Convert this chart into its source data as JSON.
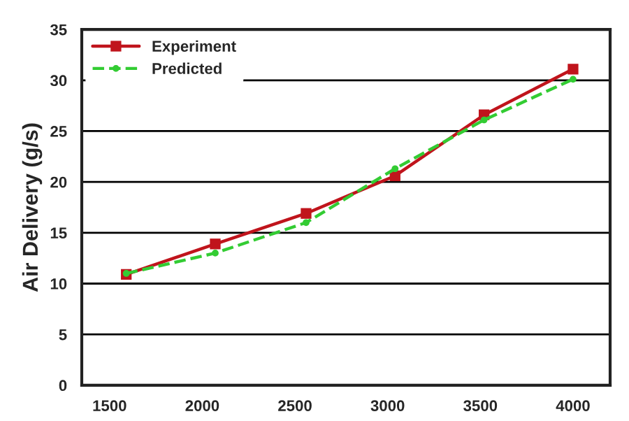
{
  "chart_data": {
    "type": "line",
    "ylabel": "Air Delivery (g/s)",
    "x": [
      1590,
      2070,
      2560,
      3040,
      3520,
      4000
    ],
    "series": [
      {
        "name": "Experiment",
        "color": "#c0141c",
        "values": [
          10.9,
          13.9,
          16.9,
          20.6,
          26.6,
          31.1
        ],
        "marker": "square",
        "line_style": "solid"
      },
      {
        "name": "Predicted",
        "color": "#33cc33",
        "values": [
          11.0,
          13.0,
          16.0,
          21.3,
          26.1,
          30.1
        ],
        "marker": "circle",
        "line_style": "dashed"
      }
    ],
    "xlim": [
      1350,
      4200
    ],
    "xticks": [
      1500,
      2000,
      2500,
      3000,
      3500,
      4000
    ],
    "ylim": [
      0,
      35
    ],
    "yticks": [
      0,
      5,
      10,
      15,
      20,
      25,
      30,
      35
    ],
    "grid": "y",
    "legend": "top left"
  }
}
